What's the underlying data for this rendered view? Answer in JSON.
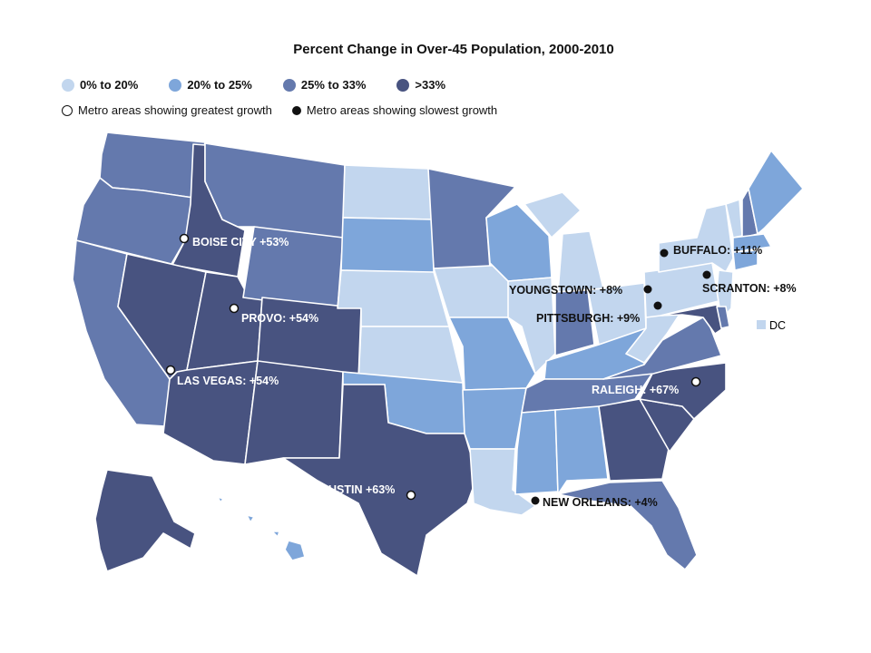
{
  "title": "Percent Change in Over-45 Population, 2000-2010",
  "colors": {
    "b1": "#c2d6ee",
    "b2": "#7ea6da",
    "b3": "#6479ad",
    "b4": "#485380"
  },
  "legend": {
    "buckets": [
      {
        "label": "0% to 20%",
        "color": "#c2d6ee"
      },
      {
        "label": "20% to 25%",
        "color": "#7ea6da"
      },
      {
        "label": "25% to 33%",
        "color": "#6479ad"
      },
      {
        "label": ">33%",
        "color": "#485380"
      }
    ],
    "greatest": "Metro areas showing greatest growth",
    "slowest": "Metro areas showing slowest growth"
  },
  "dc": {
    "label": "DC",
    "bucket": "b1"
  },
  "map_data": {
    "states": {
      "WA": "b3",
      "OR": "b3",
      "CA": "b3",
      "ID": "b4",
      "NV": "b4",
      "UT": "b4",
      "AZ": "b4",
      "MT": "b3",
      "WY": "b3",
      "CO": "b4",
      "NM": "b4",
      "ND": "b1",
      "SD": "b2",
      "NE": "b1",
      "KS": "b1",
      "OK": "b2",
      "TX": "b4",
      "MN": "b3",
      "IA": "b1",
      "MO": "b2",
      "AR": "b2",
      "LA": "b1",
      "WI": "b2",
      "IL": "b1",
      "MI": "b1",
      "IN": "b3",
      "OH": "b1",
      "KY": "b2",
      "TN": "b3",
      "MS": "b2",
      "AL": "b2",
      "GA": "b4",
      "FL": "b3",
      "SC": "b4",
      "NC": "b4",
      "VA": "b3",
      "WV": "b1",
      "PA": "b1",
      "NY": "b1",
      "VT": "b1",
      "NH": "b3",
      "ME": "b2",
      "MA": "b2",
      "CT": "b2",
      "NJ": "b1",
      "DE": "b3",
      "MD": "b4",
      "AK": "b4",
      "HI": "b2"
    },
    "metros": [
      {
        "label": "BOISE CITY +53%",
        "type": "greatest"
      },
      {
        "label": "PROVO: +54%",
        "type": "greatest"
      },
      {
        "label": "LAS VEGAS: +54%",
        "type": "greatest"
      },
      {
        "label": "AUSTIN +63%",
        "type": "greatest"
      },
      {
        "label": "RALEIGH: +67%",
        "type": "greatest"
      },
      {
        "label": "BUFFALO: +11%",
        "type": "slowest"
      },
      {
        "label": "SCRANTON: +8%",
        "type": "slowest"
      },
      {
        "label": "YOUNGSTOWN: +8%",
        "type": "slowest"
      },
      {
        "label": "PITTSBURGH: +9%",
        "type": "slowest"
      },
      {
        "label": "NEW ORLEANS: +4%",
        "type": "slowest"
      }
    ]
  }
}
